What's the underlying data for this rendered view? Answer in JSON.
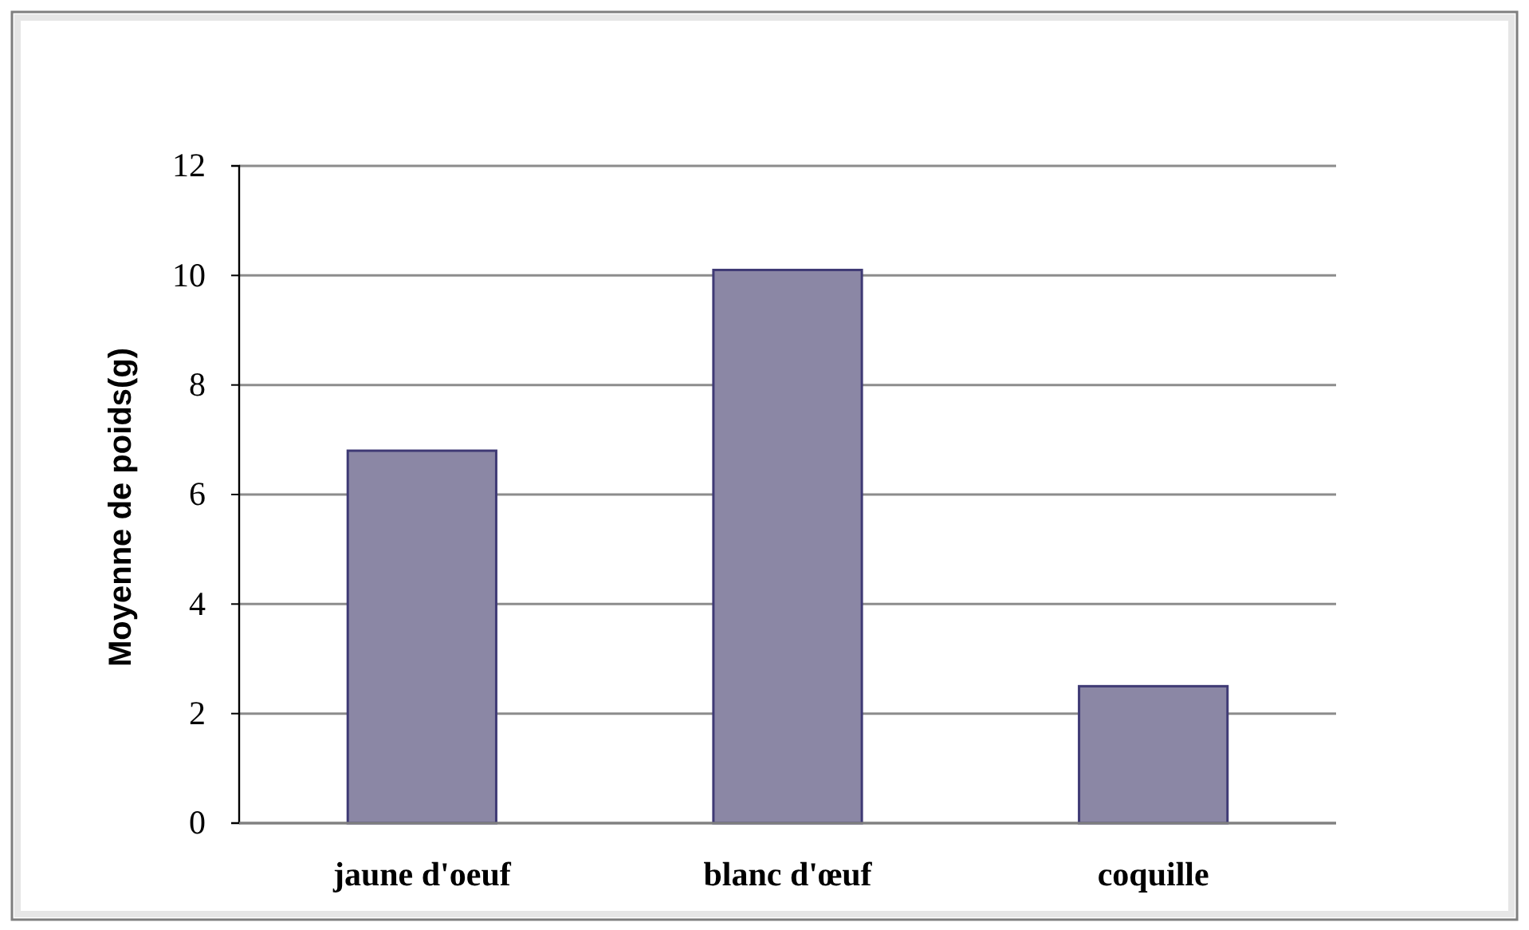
{
  "chart_data": {
    "type": "bar",
    "ylabel": "Moyenne de poids(g)",
    "categories": [
      "jaune d'oeuf",
      "blanc d'œuf",
      "coquille"
    ],
    "values": [
      6.8,
      10.1,
      2.5
    ],
    "color": "#8b87a5",
    "ylim": [
      0,
      12
    ],
    "yticks": [
      0,
      2,
      4,
      6,
      8,
      10,
      12
    ],
    "grid": "y"
  }
}
